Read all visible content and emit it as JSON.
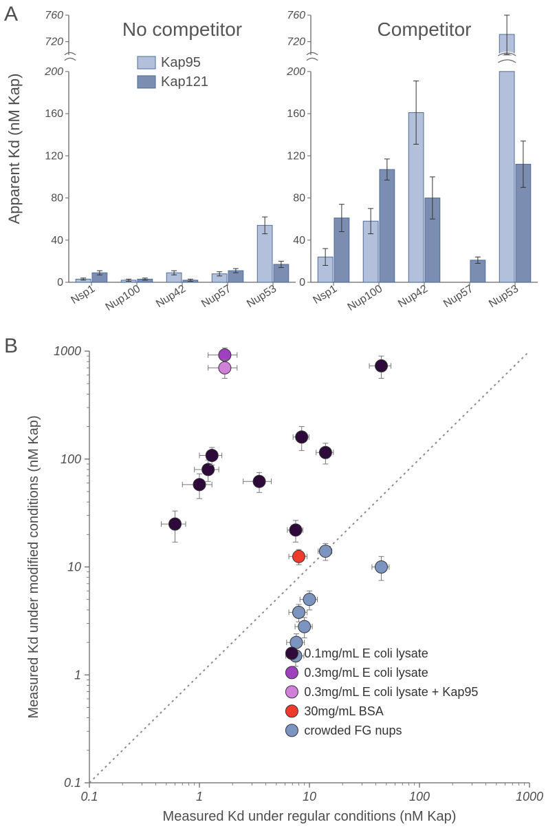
{
  "panelA": {
    "label": "A",
    "ylabel": "Apparent Kd (nM Kap)",
    "ylabel_fontsize": 22,
    "ylabel_color": "#4d4d4d",
    "categories": [
      "Nsp1",
      "Nup100",
      "Nup42",
      "Nup57",
      "Nup53"
    ],
    "category_fontsize": 16,
    "category_color": "#4d4d4d",
    "legend": {
      "items": [
        {
          "label": "Kap95",
          "color": "#b2c0dc"
        },
        {
          "label": "Kap121",
          "color": "#7b8eb2"
        }
      ],
      "fontsize": 20
    },
    "segments": {
      "low": {
        "min": 0,
        "max": 200,
        "ticks": [
          0,
          40,
          80,
          120,
          160,
          200
        ]
      },
      "high": {
        "min": 700,
        "max": 760,
        "ticks": [
          720,
          760
        ]
      }
    },
    "tick_fontsize": 16,
    "tick_color": "#4d4d4d",
    "axis_color": "#666666",
    "bar_border_color": "#4d6b99",
    "left": {
      "title": "No competitor",
      "title_fontsize": 28,
      "title_color": "#555555",
      "Kap95": [
        3,
        2,
        9,
        8,
        54
      ],
      "Kap121": [
        9,
        3,
        2,
        11,
        17
      ],
      "Kap95_err": [
        1,
        1,
        2,
        2,
        8
      ],
      "Kap121_err": [
        2,
        1,
        1,
        2,
        3
      ]
    },
    "right": {
      "title": "Competitor",
      "title_fontsize": 28,
      "title_color": "#555555",
      "Kap95": [
        24,
        58,
        161,
        0,
        731
      ],
      "Kap121": [
        61,
        107,
        80,
        21,
        112
      ],
      "Kap95_err": [
        8,
        12,
        30,
        0,
        30
      ],
      "Kap121_err": [
        13,
        10,
        20,
        3,
        22
      ]
    }
  },
  "panelB": {
    "label": "B",
    "xlabel": "Measured Kd under regular conditions (nM Kap)",
    "ylabel": "Measured Kd under modified conditions (nM Kap)",
    "axis_label_fontsize": 20,
    "axis_label_color": "#4d4d4d",
    "axis_color": "#666666",
    "tick_fontsize": 18,
    "tick_color": "#4d4d4d",
    "xrange_log10": [
      -1,
      3
    ],
    "yrange_log10": [
      -1,
      3
    ],
    "xticks": [
      0.1,
      1,
      10,
      100,
      1000
    ],
    "yticks": [
      0.1,
      1,
      10,
      100,
      1000
    ],
    "diagonal_color": "#888888",
    "marker_radius": 9,
    "marker_stroke": "#333333",
    "legend_fontsize": 18,
    "series": [
      {
        "label": "0.1mg/mL E coli lysate",
        "color": "#2e0a3a",
        "points": [
          {
            "x": 0.6,
            "y": 25,
            "ex": 0.15,
            "ey": 8
          },
          {
            "x": 1.0,
            "y": 58,
            "ex": 0.3,
            "ey": 15
          },
          {
            "x": 1.2,
            "y": 80,
            "ex": 0.3,
            "ey": 18
          },
          {
            "x": 1.3,
            "y": 108,
            "ex": 0.3,
            "ey": 20
          },
          {
            "x": 3.5,
            "y": 62,
            "ex": 1.0,
            "ey": 13
          },
          {
            "x": 7.5,
            "y": 22,
            "ex": 1.2,
            "ey": 5
          },
          {
            "x": 8.5,
            "y": 160,
            "ex": 1.4,
            "ey": 40
          },
          {
            "x": 14,
            "y": 115,
            "ex": 2.5,
            "ey": 25
          },
          {
            "x": 45,
            "y": 730,
            "ex": 10,
            "ey": 170
          }
        ]
      },
      {
        "label": "0.3mg/mL E coli lysate",
        "color": "#a040c0",
        "points": [
          {
            "x": 1.7,
            "y": 920,
            "ex": 0.5,
            "ey": 150
          }
        ]
      },
      {
        "label": "0.3mg/mL E coli lysate + Kap95",
        "color": "#d080d8",
        "points": [
          {
            "x": 1.7,
            "y": 700,
            "ex": 0.5,
            "ey": 140
          }
        ]
      },
      {
        "label": "30mg/mL BSA",
        "color": "#ef3b2c",
        "points": [
          {
            "x": 8,
            "y": 12.5,
            "ex": 1.5,
            "ey": 2
          }
        ]
      },
      {
        "label": "crowded FG nups",
        "color": "#7b94c0",
        "points": [
          {
            "x": 7.5,
            "y": 1.5,
            "ex": 1.4,
            "ey": 0.3
          },
          {
            "x": 7.6,
            "y": 2.0,
            "ex": 1.4,
            "ey": 0.4
          },
          {
            "x": 9,
            "y": 2.8,
            "ex": 1.6,
            "ey": 0.6
          },
          {
            "x": 8,
            "y": 3.8,
            "ex": 1.5,
            "ey": 0.7
          },
          {
            "x": 10,
            "y": 5.0,
            "ex": 1.8,
            "ey": 1.0
          },
          {
            "x": 14,
            "y": 14,
            "ex": 2.0,
            "ey": 2.5
          },
          {
            "x": 45,
            "y": 10,
            "ex": 8,
            "ey": 2.5
          }
        ]
      }
    ]
  }
}
